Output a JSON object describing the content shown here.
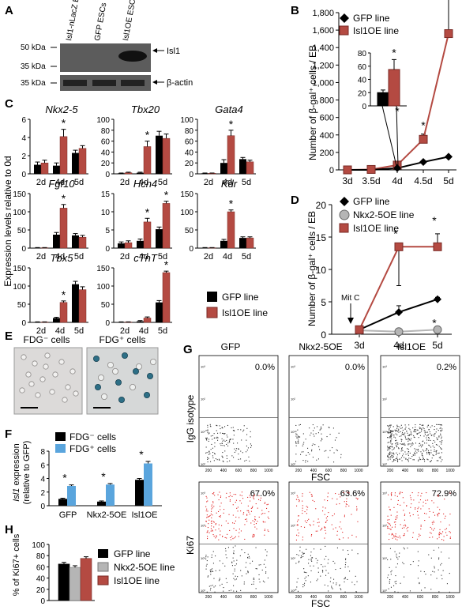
{
  "colors": {
    "black_series": "#000000",
    "red_series": "#b44a42",
    "blue_series": "#5aa5dd",
    "gray_series": "#b5b5b5",
    "axis": "#000000",
    "red_dot": "#e02020",
    "western_bg": "#555555",
    "cells_bg": "#dcdad9"
  },
  "panels": {
    "A": {
      "letter": "A",
      "lanes": [
        "Isl1-nLacZ ESCs",
        "GFP ESCs",
        "Isl1OE ESCs"
      ],
      "markers_top": [
        "50 kDa",
        "35 kDa"
      ],
      "marker_bottom": "35 kDa",
      "band_top": "Isl1",
      "band_bottom": "β-actin"
    },
    "B": {
      "letter": "B"
    },
    "C": {
      "letter": "C",
      "ylabel": "Expression levels relative to 0d",
      "legend": [
        "GFP line",
        "Isl1OE line"
      ]
    },
    "D": {
      "letter": "D",
      "annotation": "Mit C"
    },
    "E": {
      "letter": "E",
      "labels": [
        "FDG⁻ cells",
        "FDG⁺ cells"
      ]
    },
    "F": {
      "letter": "F"
    },
    "G": {
      "letter": "G",
      "columns": [
        "GFP",
        "Nkx2-5OE",
        "Isl1OE"
      ],
      "row_labels": [
        "IgG isotype",
        "Ki67"
      ],
      "xlabel": "FSC",
      "percent_top": [
        "0.0%",
        "0.0%",
        "0.2%"
      ],
      "percent_bottom": [
        "67.0%",
        "63.6%",
        "72.9%"
      ],
      "axis_ticks_x": [
        "200",
        "400",
        "600",
        "800",
        "1000"
      ],
      "axis_ticks_y": [
        "10⁰",
        "10¹",
        "10²",
        "10³"
      ]
    },
    "H": {
      "letter": "H"
    }
  },
  "chart_data": [
    {
      "id": "B",
      "type": "line",
      "ylabel": "Number of β-gal⁺ cells / EB",
      "categories": [
        "3d",
        "3.5d",
        "4d",
        "4.5d",
        "5d"
      ],
      "ylim": [
        0,
        1800
      ],
      "yticks": [
        "0",
        "200",
        "400",
        "600",
        "800",
        "1,000",
        "1,200",
        "1,400",
        "1,600",
        "1,800"
      ],
      "series": [
        {
          "name": "GFP line",
          "values": [
            0,
            0,
            20,
            90,
            150
          ]
        },
        {
          "name": "Isl1OE line",
          "values": [
            0,
            5,
            55,
            350,
            1560
          ],
          "err": [
            0,
            5,
            30,
            60,
            400
          ]
        }
      ],
      "stars_at": [
        "4d",
        "4.5d",
        "5d"
      ],
      "inset": {
        "categories": [
          "GFP line",
          "Isl1OE line"
        ],
        "values": [
          20,
          55
        ],
        "err": [
          4,
          15
        ],
        "ylim": [
          0,
          80
        ],
        "yticks": [
          "0",
          "20",
          "40",
          "60",
          "80"
        ],
        "star": "*"
      }
    },
    {
      "id": "C",
      "type": "bar",
      "categories": [
        "2d",
        "4d",
        "5d"
      ],
      "series_names": [
        "GFP line",
        "Isl1OE line"
      ],
      "subplots": [
        {
          "gene": "Nkx2-5",
          "ylim": [
            0,
            6
          ],
          "yticks": [
            "0",
            "2",
            "4",
            "6"
          ],
          "gfp": [
            1.0,
            0.9,
            2.3
          ],
          "isl": [
            1.2,
            4.1,
            2.8
          ],
          "gfp_err": [
            0.3,
            0.3,
            0.3
          ],
          "isl_err": [
            0.3,
            0.8,
            0.3
          ],
          "star": [
            false,
            true,
            false
          ]
        },
        {
          "gene": "Tbx20",
          "ylim": [
            0,
            100
          ],
          "yticks": [
            "0",
            "20",
            "40",
            "60",
            "80",
            "100"
          ],
          "gfp": [
            1,
            2,
            70
          ],
          "isl": [
            2,
            50,
            65
          ],
          "gfp_err": [
            0.5,
            1,
            8
          ],
          "isl_err": [
            1,
            10,
            8
          ],
          "star": [
            false,
            true,
            false
          ]
        },
        {
          "gene": "Gata4",
          "ylim": [
            0,
            100
          ],
          "yticks": [
            "0",
            "20",
            "40",
            "60",
            "80",
            "100"
          ],
          "gfp": [
            1,
            20,
            27
          ],
          "isl": [
            1,
            70,
            22
          ],
          "gfp_err": [
            0.5,
            6,
            3
          ],
          "isl_err": [
            0.5,
            10,
            3
          ],
          "star": [
            false,
            true,
            false
          ]
        },
        {
          "gene": "Fgf10",
          "ylim": [
            0,
            150
          ],
          "yticks": [
            "0",
            "50",
            "100",
            "150"
          ],
          "gfp": [
            1,
            37,
            35
          ],
          "isl": [
            1,
            110,
            30
          ],
          "gfp_err": [
            0.5,
            6,
            5
          ],
          "isl_err": [
            0.5,
            10,
            5
          ],
          "star": [
            false,
            true,
            false
          ]
        },
        {
          "gene": "Hcn4",
          "ylim": [
            0,
            15
          ],
          "yticks": [
            "0",
            "5",
            "10",
            "15"
          ],
          "gfp": [
            1.3,
            2.0,
            5.2
          ],
          "isl": [
            1.5,
            7.2,
            12.3
          ],
          "gfp_err": [
            0.4,
            0.5,
            0.6
          ],
          "isl_err": [
            0.5,
            1.0,
            0.6
          ],
          "star": [
            false,
            true,
            true
          ]
        },
        {
          "gene": "Kdr",
          "ylim": [
            0,
            150
          ],
          "yticks": [
            "0",
            "50",
            "100",
            "150"
          ],
          "gfp": [
            1,
            20,
            28
          ],
          "isl": [
            1,
            100,
            28
          ],
          "gfp_err": [
            0.5,
            4,
            3
          ],
          "isl_err": [
            0.5,
            5,
            3
          ],
          "star": [
            false,
            true,
            false
          ]
        },
        {
          "gene": "Tbx5",
          "ylim": [
            0,
            150
          ],
          "yticks": [
            "0",
            "50",
            "100",
            "150"
          ],
          "gfp": [
            1,
            12,
            105
          ],
          "isl": [
            1,
            55,
            90
          ],
          "gfp_err": [
            0.5,
            2,
            8
          ],
          "isl_err": [
            0.5,
            4,
            8
          ],
          "star": [
            false,
            true,
            false
          ]
        },
        {
          "gene": "cTnT",
          "ylim": [
            0,
            150
          ],
          "yticks": [
            "0",
            "50",
            "100",
            "150"
          ],
          "gfp": [
            1,
            3,
            55
          ],
          "isl": [
            1,
            12,
            137
          ],
          "gfp_err": [
            0.5,
            2,
            5
          ],
          "isl_err": [
            0.5,
            3,
            4
          ],
          "star": [
            false,
            false,
            true
          ]
        }
      ]
    },
    {
      "id": "D",
      "type": "line",
      "ylabel": "Number of β-gal⁺ cells / EB",
      "categories": [
        "3d",
        "4d",
        "5d"
      ],
      "ylim": [
        0,
        20
      ],
      "yticks": [
        "0",
        "5",
        "10",
        "15",
        "20"
      ],
      "series": [
        {
          "name": "GFP line",
          "values": [
            0.7,
            3.4,
            5.4
          ],
          "err": [
            0.3,
            1.0,
            0.3
          ]
        },
        {
          "name": "Nkx2-5OE line",
          "values": [
            0.6,
            0.4,
            0.7
          ],
          "err": [
            0.2,
            0.2,
            0.2
          ]
        },
        {
          "name": "Isl1OE line",
          "values": [
            0.7,
            13.5,
            13.5
          ],
          "err": [
            0.3,
            6.0,
            2.0
          ]
        }
      ],
      "stars": [
        {
          "at": "4d",
          "series": "Isl1OE line"
        },
        {
          "at": "5d",
          "series": "Isl1OE line"
        },
        {
          "at": "5d",
          "series": "Nkx2-5OE line"
        }
      ]
    },
    {
      "id": "F",
      "type": "bar",
      "ylabel": "Isl1 expression (relative to GFP)",
      "categories": [
        "GFP",
        "Nkx2-5OE",
        "Isl1OE"
      ],
      "ylim": [
        0,
        8
      ],
      "yticks": [
        "0",
        "2",
        "4",
        "6",
        "8"
      ],
      "series": [
        {
          "name": "FDG⁻ cells",
          "values": [
            1.0,
            0.6,
            3.8
          ],
          "err": [
            0.1,
            0.1,
            0.2
          ]
        },
        {
          "name": "FDG⁺ cells",
          "values": [
            2.9,
            3.1,
            6.2
          ],
          "err": [
            0.15,
            0.15,
            0.3
          ]
        }
      ],
      "stars": [
        true,
        true,
        true
      ]
    },
    {
      "id": "H",
      "type": "bar",
      "ylabel": "% of Ki67+ cells",
      "categories": [
        "GFP line",
        "Nkx2-5OE line",
        "Isl1OE line"
      ],
      "ylim": [
        0,
        100
      ],
      "yticks": [
        "0",
        "20",
        "40",
        "60",
        "80",
        "100"
      ],
      "values": [
        65,
        59,
        75
      ],
      "err": [
        3,
        3,
        3
      ]
    }
  ]
}
